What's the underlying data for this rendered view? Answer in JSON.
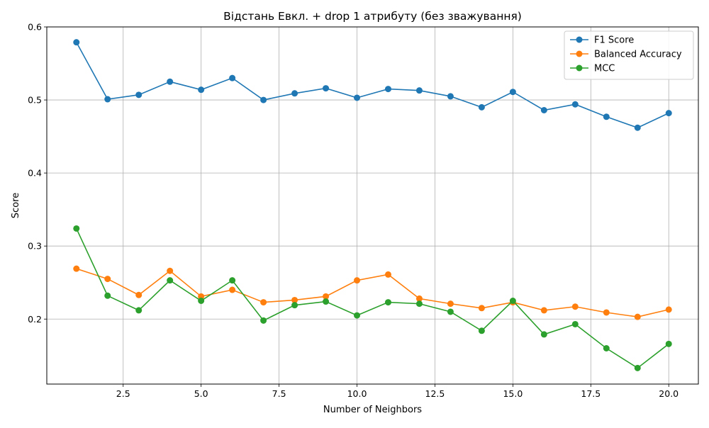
{
  "chart_data": {
    "type": "line",
    "title": "Відстань Евкл. + drop 1 атрибуту (без зважування)",
    "xlabel": "Number of Neighbors",
    "ylabel": "Score",
    "xlim": [
      0.05,
      20.95
    ],
    "ylim": [
      0.111,
      0.6
    ],
    "x_ticks": [
      2.5,
      5.0,
      7.5,
      10.0,
      12.5,
      15.0,
      17.5,
      20.0
    ],
    "x_tick_labels": [
      "2.5",
      "5.0",
      "7.5",
      "10.0",
      "12.5",
      "15.0",
      "17.5",
      "20.0"
    ],
    "y_ticks": [
      0.2,
      0.3,
      0.4,
      0.5,
      0.6
    ],
    "y_tick_labels": [
      "0.2",
      "0.3",
      "0.4",
      "0.5",
      "0.6"
    ],
    "grid": true,
    "legend_position": "top-right",
    "x": [
      1,
      2,
      3,
      4,
      5,
      6,
      7,
      8,
      9,
      10,
      11,
      12,
      13,
      14,
      15,
      16,
      17,
      18,
      19,
      20
    ],
    "series": [
      {
        "name": "F1 Score",
        "color": "#1f77b4",
        "values": [
          0.579,
          0.501,
          0.507,
          0.525,
          0.514,
          0.53,
          0.5,
          0.509,
          0.516,
          0.503,
          0.515,
          0.513,
          0.505,
          0.49,
          0.511,
          0.486,
          0.494,
          0.477,
          0.462,
          0.482
        ]
      },
      {
        "name": "Balanced Accuracy",
        "color": "#ff7f0e",
        "values": [
          0.269,
          0.255,
          0.233,
          0.266,
          0.231,
          0.24,
          0.223,
          0.226,
          0.231,
          0.253,
          0.261,
          0.228,
          0.221,
          0.215,
          0.223,
          0.212,
          0.217,
          0.209,
          0.203,
          0.213
        ]
      },
      {
        "name": "MCC",
        "color": "#2ca02c",
        "values": [
          0.324,
          0.232,
          0.212,
          0.253,
          0.225,
          0.253,
          0.198,
          0.219,
          0.224,
          0.205,
          0.223,
          0.221,
          0.21,
          0.184,
          0.225,
          0.179,
          0.193,
          0.16,
          0.133,
          0.166
        ]
      }
    ]
  }
}
